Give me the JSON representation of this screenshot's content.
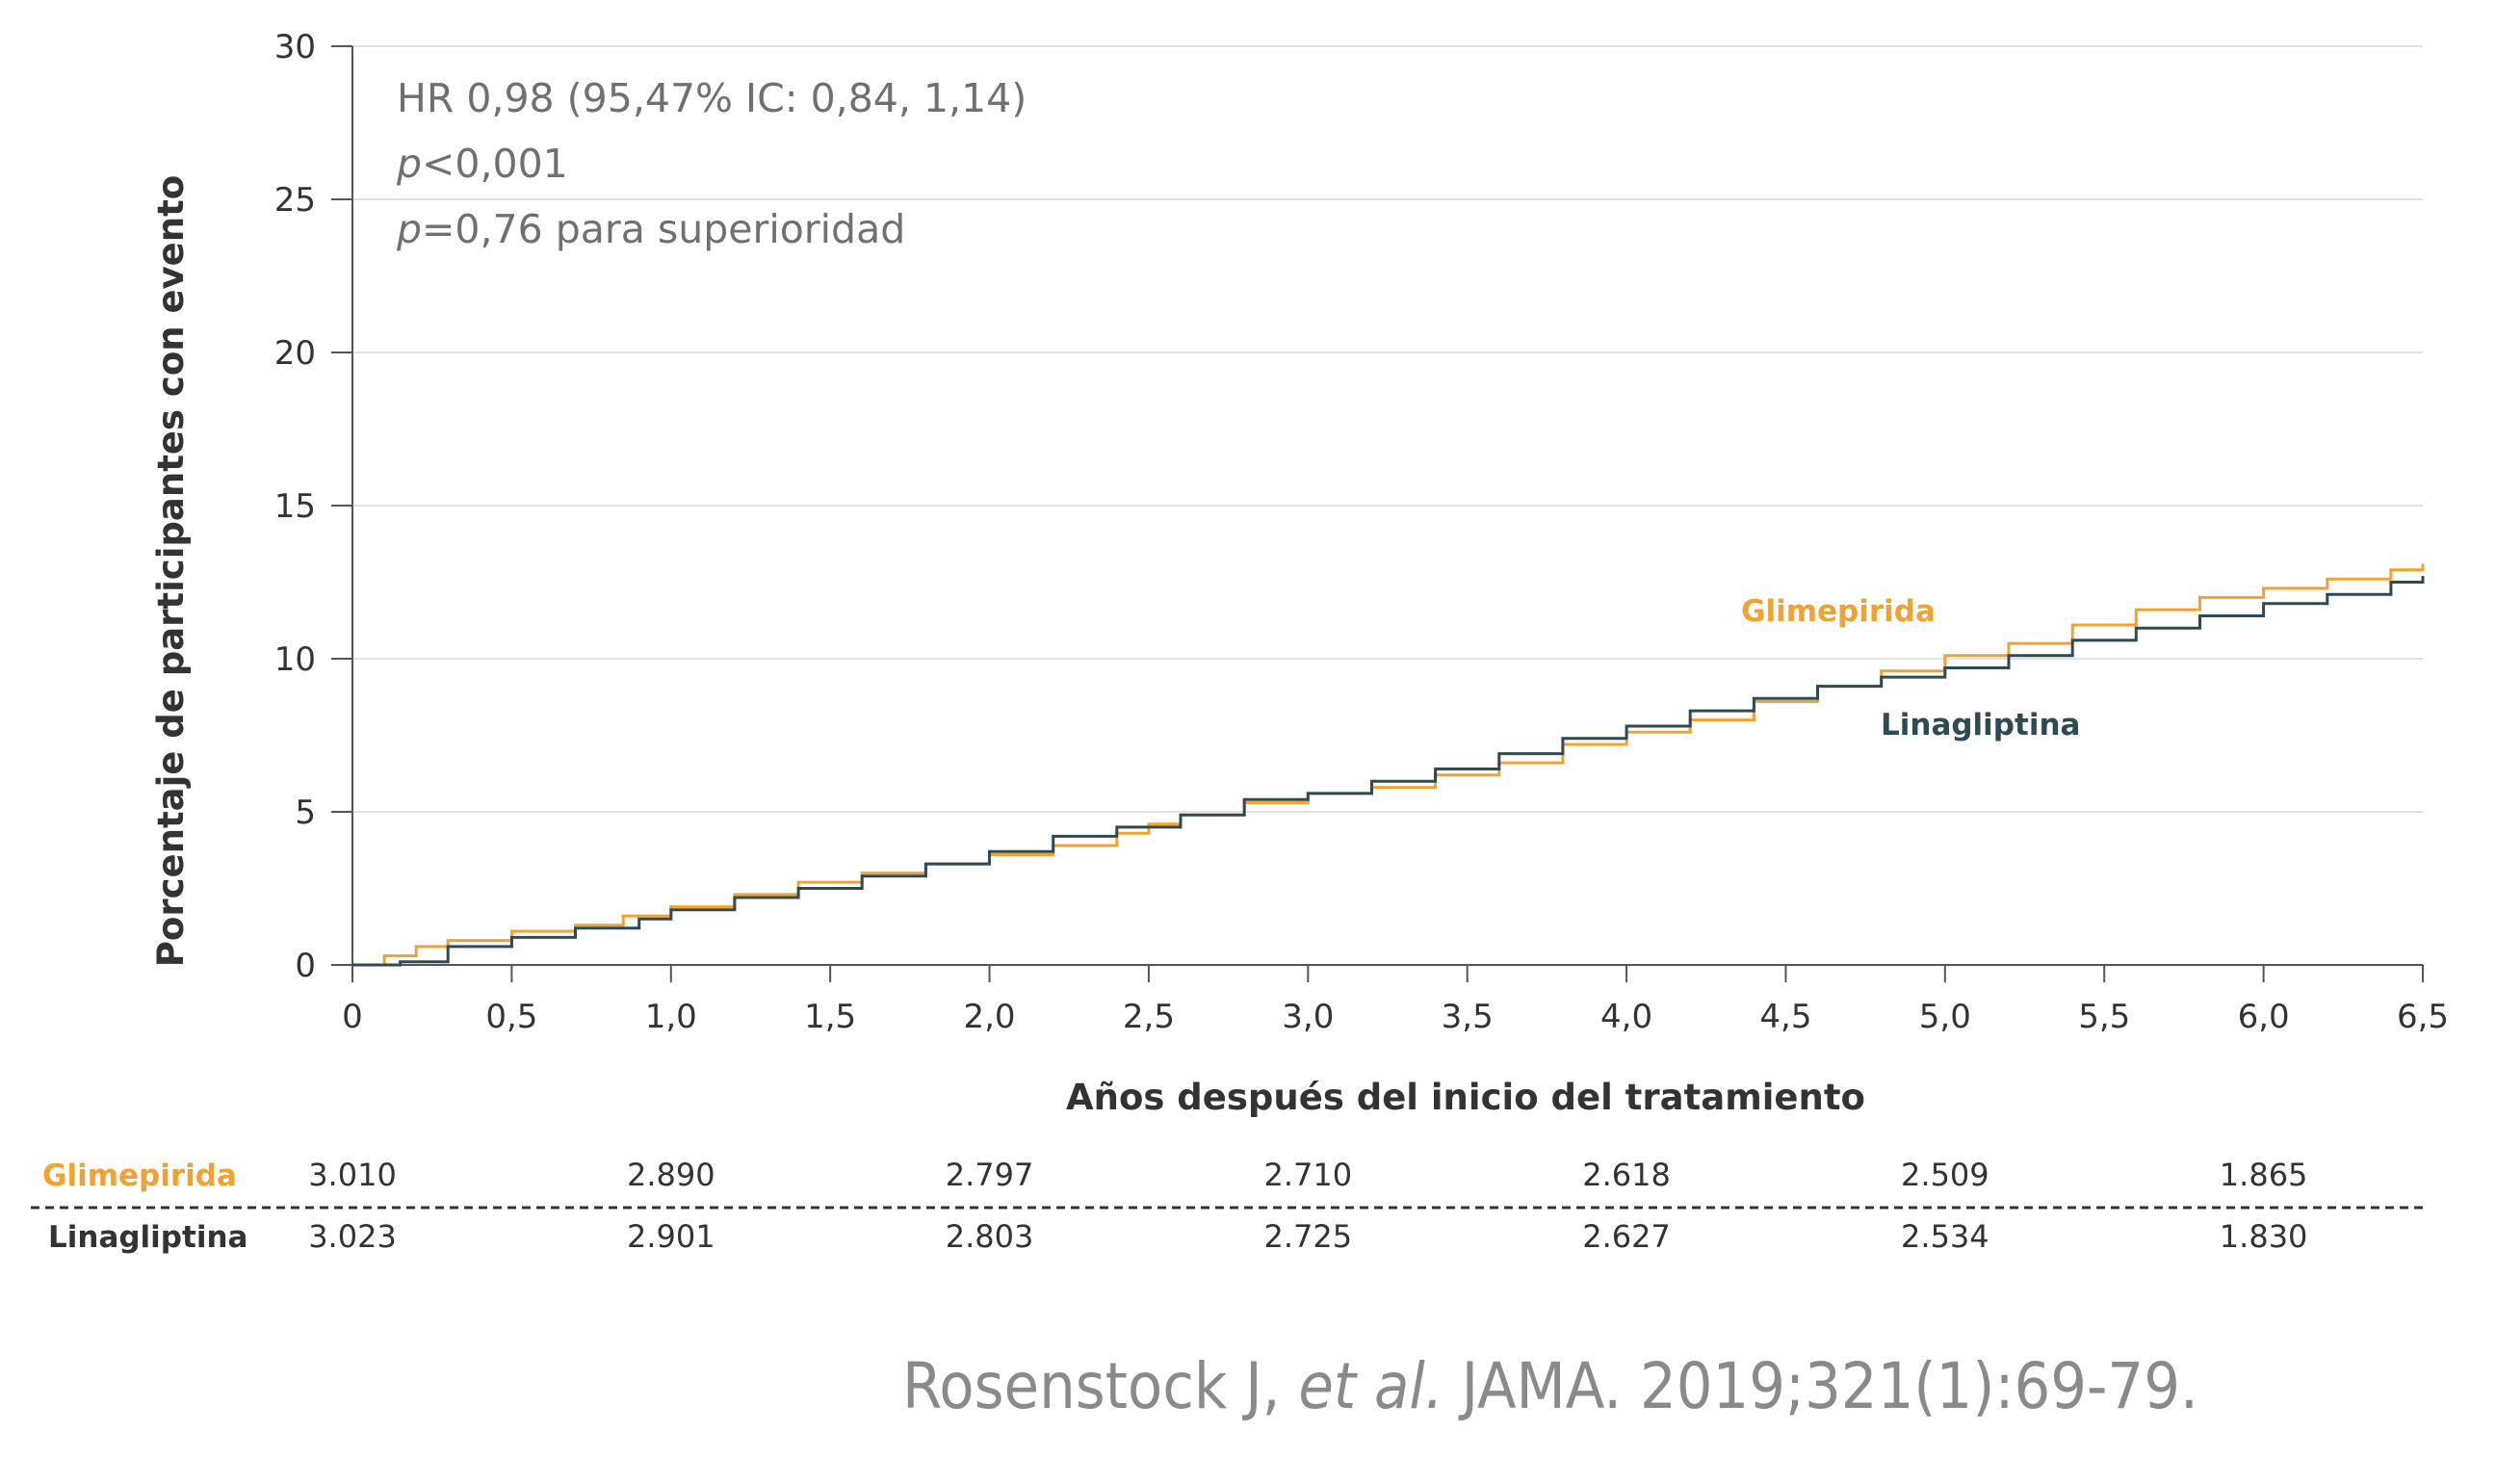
{
  "colors": {
    "glimepirida": "#F2A231",
    "linagliptina": "#2E4A52",
    "grid": "#e2e2e2",
    "axis": "#555555",
    "annotation": "#707070",
    "citation": "#8a8a8a"
  },
  "chart_data": {
    "type": "line",
    "xlabel": "Años después del inicio del tratamiento",
    "ylabel": "Porcentaje de participantes con evento",
    "xlim": [
      0,
      6.5
    ],
    "ylim": [
      0,
      30
    ],
    "x_ticks": [
      "0",
      "0,5",
      "1,0",
      "1,5",
      "2,0",
      "2,5",
      "3,0",
      "3,5",
      "4,0",
      "4,5",
      "5,0",
      "5,5",
      "6,0",
      "6,5"
    ],
    "y_ticks": [
      "0",
      "5",
      "10",
      "15",
      "20",
      "25",
      "30"
    ],
    "grid": "horizontal",
    "annotations": {
      "hr": "HR 0,98 (95,47% IC: 0,84, 1,14)",
      "p1_italic": "p",
      "p1_rest": "<0,001",
      "p2_italic": "p",
      "p2_rest": "=0,76 para superioridad"
    },
    "series": [
      {
        "name": "Glimepirida",
        "x": [
          0,
          0.1,
          0.2,
          0.3,
          0.5,
          0.7,
          0.85,
          1.0,
          1.2,
          1.4,
          1.6,
          1.8,
          2.0,
          2.2,
          2.4,
          2.5,
          2.6,
          2.8,
          3.0,
          3.2,
          3.4,
          3.6,
          3.8,
          4.0,
          4.2,
          4.4,
          4.6,
          4.8,
          5.0,
          5.2,
          5.4,
          5.6,
          5.8,
          6.0,
          6.2,
          6.4,
          6.5
        ],
        "y": [
          0,
          0.3,
          0.6,
          0.8,
          1.1,
          1.3,
          1.6,
          1.9,
          2.3,
          2.7,
          3.0,
          3.3,
          3.6,
          3.9,
          4.3,
          4.6,
          4.9,
          5.3,
          5.6,
          5.8,
          6.2,
          6.6,
          7.2,
          7.6,
          8.0,
          8.6,
          9.1,
          9.6,
          10.1,
          10.5,
          11.1,
          11.6,
          12.0,
          12.3,
          12.6,
          12.9,
          13.1
        ]
      },
      {
        "name": "Linagliptina",
        "x": [
          0,
          0.15,
          0.3,
          0.5,
          0.7,
          0.9,
          1.0,
          1.2,
          1.4,
          1.6,
          1.8,
          2.0,
          2.2,
          2.4,
          2.6,
          2.8,
          3.0,
          3.2,
          3.4,
          3.6,
          3.8,
          4.0,
          4.2,
          4.4,
          4.6,
          4.8,
          5.0,
          5.2,
          5.4,
          5.6,
          5.8,
          6.0,
          6.2,
          6.4,
          6.5
        ],
        "y": [
          0,
          0.1,
          0.6,
          0.9,
          1.2,
          1.5,
          1.8,
          2.2,
          2.5,
          2.9,
          3.3,
          3.7,
          4.2,
          4.5,
          4.9,
          5.4,
          5.6,
          6.0,
          6.4,
          6.9,
          7.4,
          7.8,
          8.3,
          8.7,
          9.1,
          9.4,
          9.7,
          10.1,
          10.6,
          11.0,
          11.4,
          11.8,
          12.1,
          12.5,
          12.7
        ]
      }
    ],
    "series_labels": {
      "glimepirida": "Glimepirida",
      "linagliptina": "Linagliptina"
    }
  },
  "risk_table": {
    "rows": [
      {
        "name": "Glimepirida",
        "values": [
          "3.010",
          "2.890",
          "2.797",
          "2.710",
          "2.618",
          "2.509",
          "1.865"
        ]
      },
      {
        "name": "Linagliptina",
        "values": [
          "3.023",
          "2.901",
          "2.803",
          "2.725",
          "2.627",
          "2.534",
          "1.830"
        ]
      }
    ]
  },
  "citation": {
    "author": "Rosenstock J, ",
    "etal": "et al.",
    "journal": " JAMA. 2019;321(1):69-79."
  }
}
